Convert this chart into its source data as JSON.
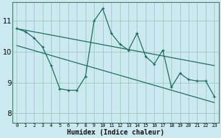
{
  "xlabel": "Humidex (Indice chaleur)",
  "bg_color": "#cce8f0",
  "grid_color": "#99ccbb",
  "line_color": "#1a6b5a",
  "ylim": [
    7.7,
    11.6
  ],
  "xlim": [
    -0.5,
    23.5
  ],
  "yticks": [
    8,
    9,
    10,
    11
  ],
  "xtick_labels": [
    "0",
    "1",
    "2",
    "3",
    "4",
    "5",
    "6",
    "7",
    "8",
    "9",
    "10",
    "11",
    "12",
    "13",
    "14",
    "15",
    "16",
    "17",
    "18",
    "19",
    "20",
    "21",
    "22",
    "23"
  ],
  "zigzag_y": [
    10.75,
    10.65,
    10.45,
    10.15,
    9.55,
    8.8,
    8.75,
    8.75,
    9.2,
    11.0,
    11.4,
    10.6,
    10.25,
    10.05,
    10.6,
    9.85,
    9.6,
    10.05,
    8.85,
    9.3,
    9.1,
    9.05,
    9.05,
    8.55
  ],
  "trend1_x": [
    0,
    23
  ],
  "trend1_y": [
    10.75,
    9.55
  ],
  "trend2_x": [
    0,
    23
  ],
  "trend2_y": [
    10.2,
    8.35
  ]
}
